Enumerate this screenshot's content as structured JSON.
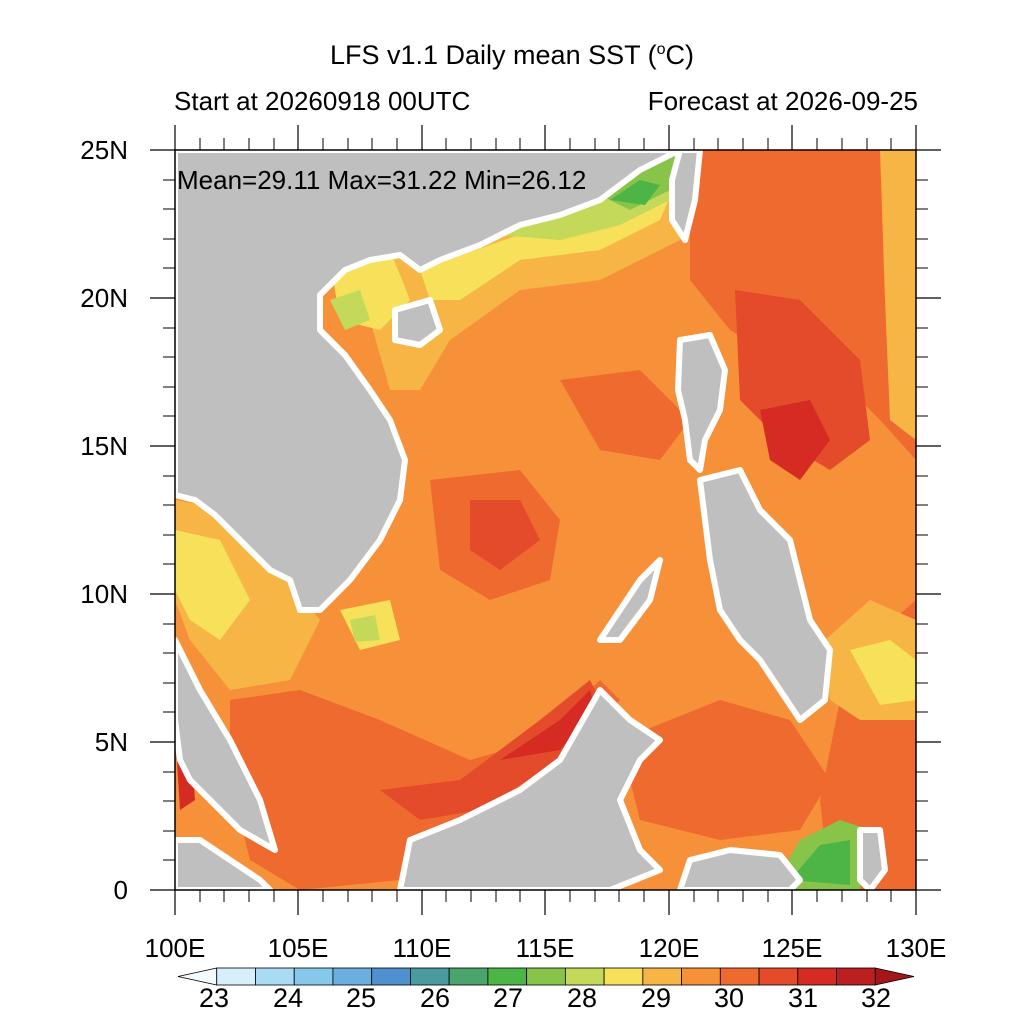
{
  "title": "LFS v1.1 Daily mean SST (",
  "title_deg": "o",
  "title_unit_tail": "C)",
  "subtitle_left": "Start at 20260918 00UTC",
  "subtitle_right": "Forecast at 2026-09-25",
  "stats_text": "Mean=29.11  Max=31.22  Min=26.12",
  "lat_labels": [
    "25N",
    "20N",
    "15N",
    "10N",
    "5N",
    "0"
  ],
  "lon_labels": [
    "100E",
    "105E",
    "110E",
    "115E",
    "120E",
    "125E",
    "130E"
  ],
  "colorbar": {
    "labels": [
      "23",
      "24",
      "25",
      "26",
      "27",
      "28",
      "29",
      "30",
      "31",
      "32"
    ],
    "colors": [
      "#f2fbff",
      "#d7effb",
      "#a9dcf4",
      "#86c8ec",
      "#6baee0",
      "#4f90cf",
      "#4a9ba0",
      "#4aa46c",
      "#4db446",
      "#88c44a",
      "#c4d85a",
      "#f7e05a",
      "#f6b545",
      "#f6913a",
      "#ef6a2e",
      "#e44b2a",
      "#d52b23",
      "#bc1f1f",
      "#a3161a"
    ]
  },
  "map_data": {
    "lon_range": [
      100,
      130
    ],
    "lat_range": [
      0,
      25
    ],
    "stats": {
      "mean": 29.11,
      "max": 31.22,
      "min": 26.12
    },
    "land_color": "#bfbfbf",
    "dominant_sst_color": "#f6913a"
  }
}
